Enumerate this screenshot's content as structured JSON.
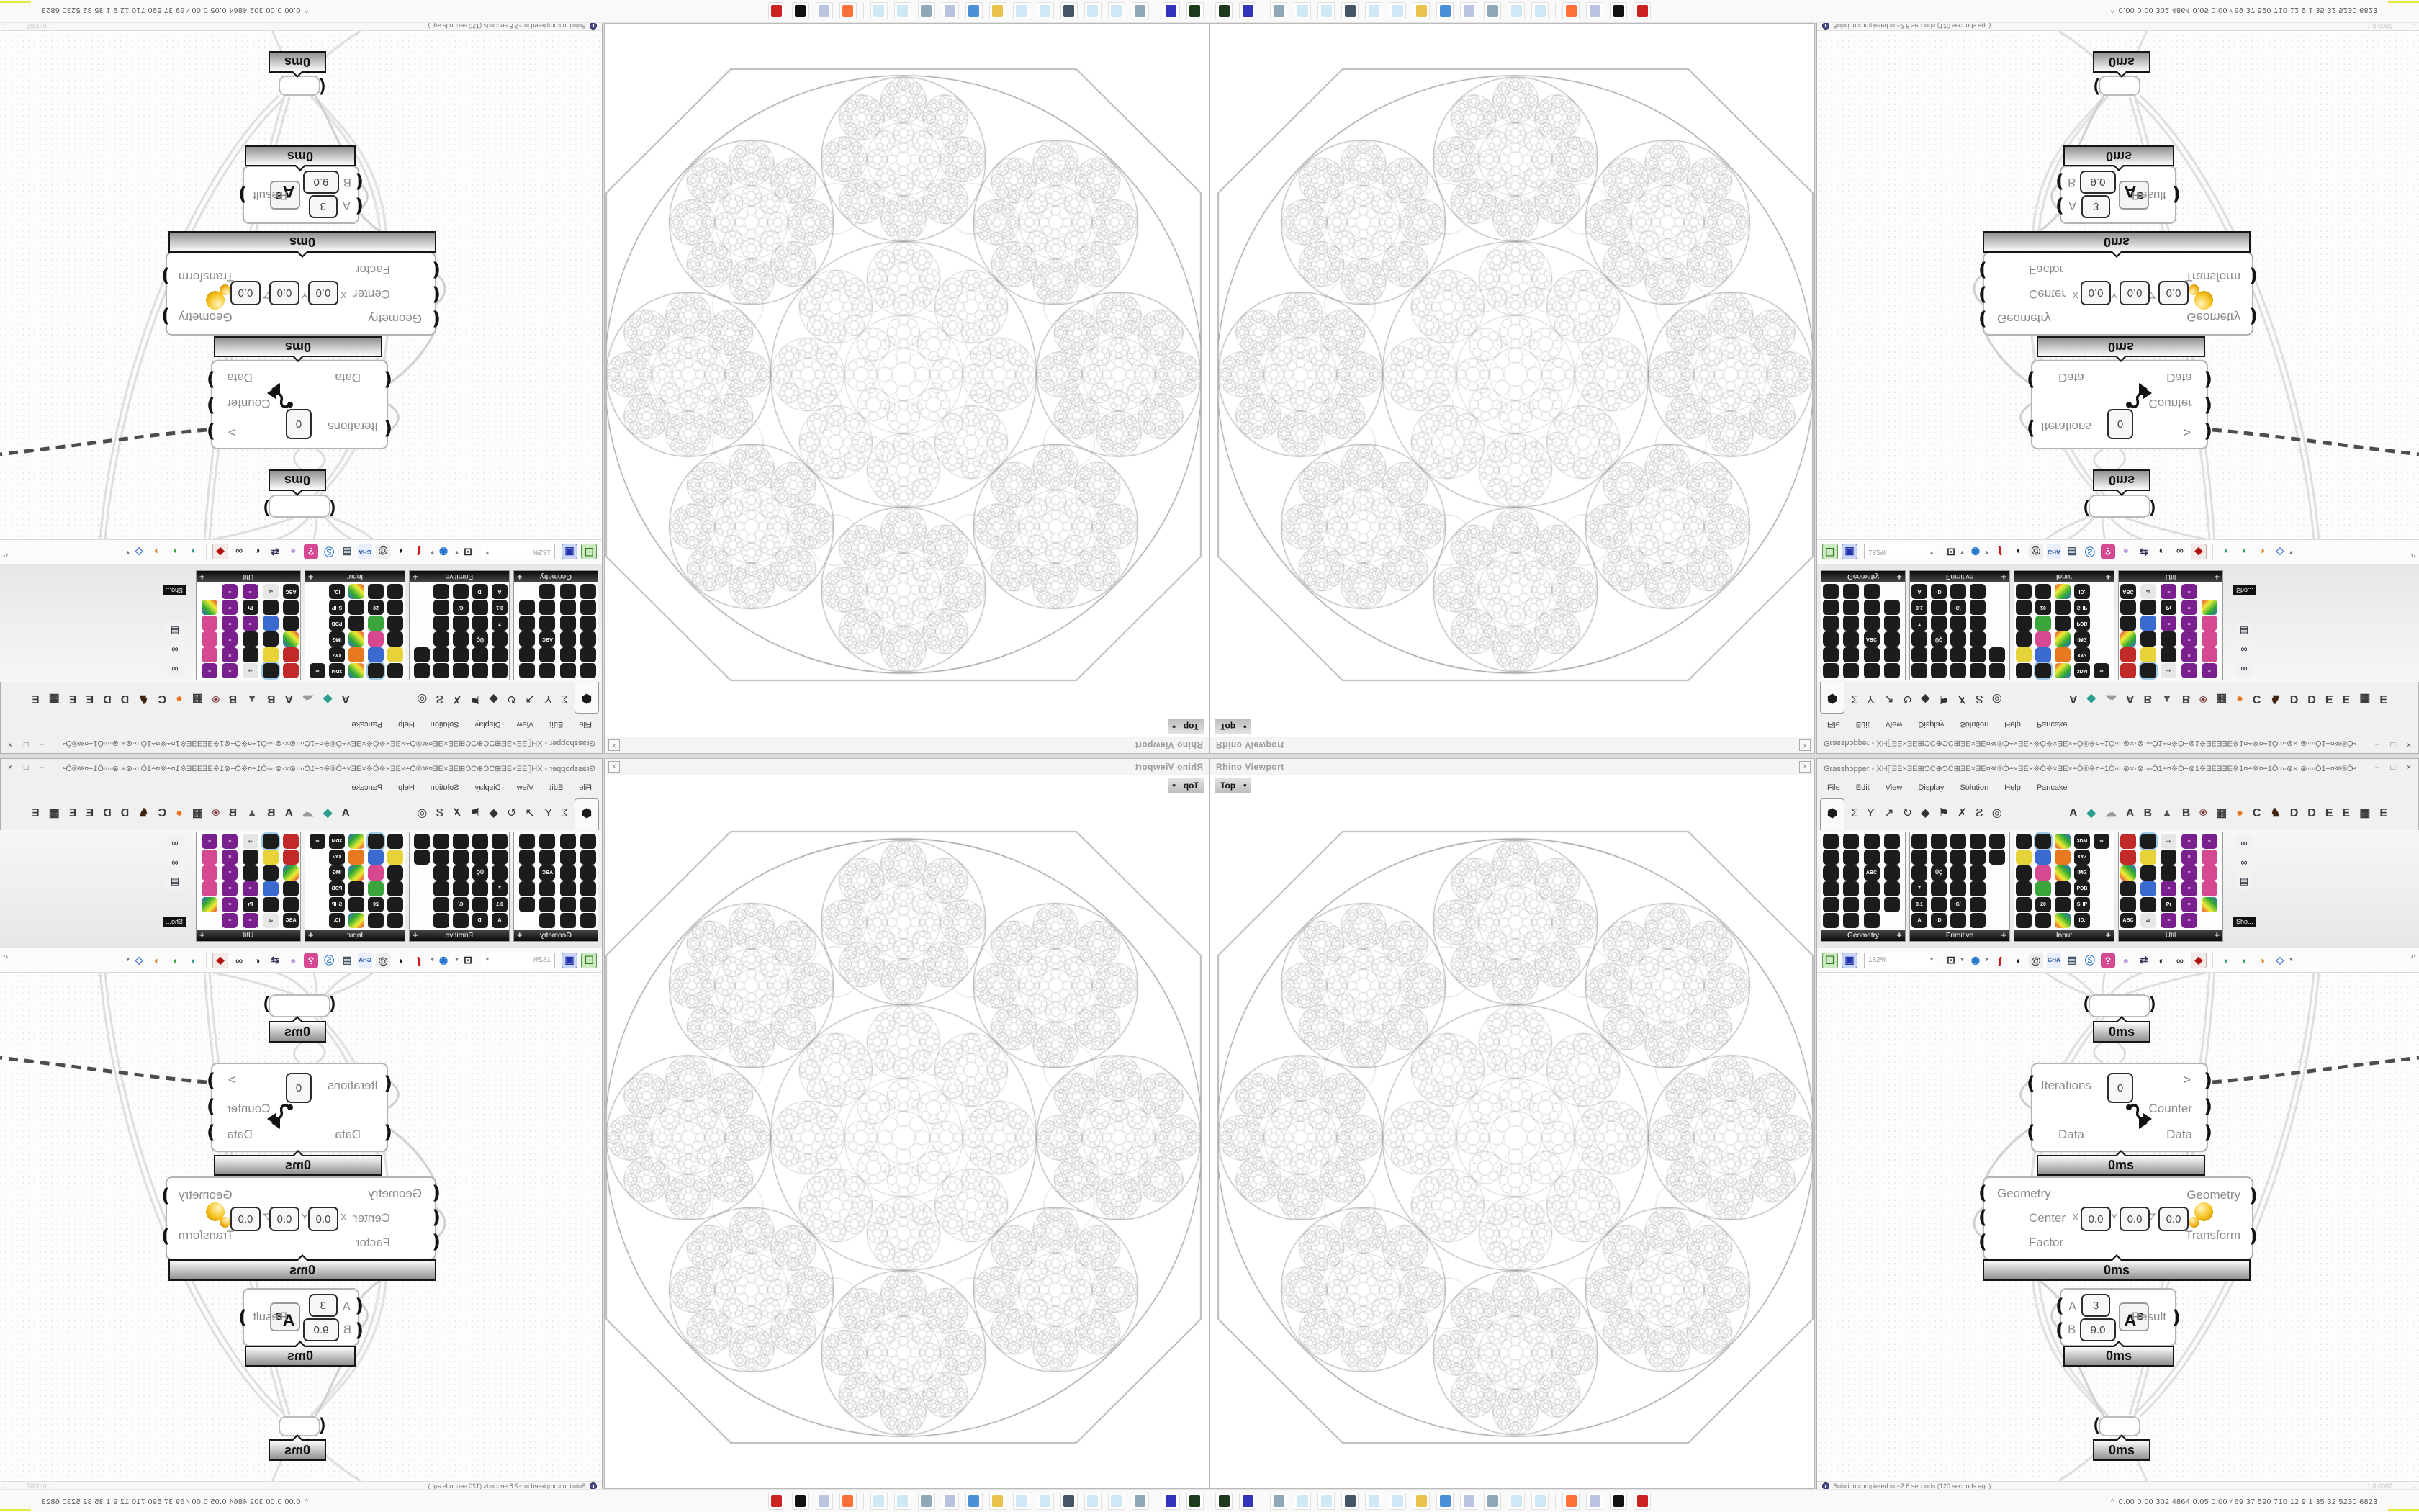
{
  "viewport": {
    "title": "Rhino Viewport",
    "close_label": "x",
    "view_button": {
      "label": "Top",
      "caret": "▾"
    }
  },
  "grasshopper": {
    "title": "Grasshopper - XH[]ƎE×ƎE⊞ƆC⊕ƆC⊞ƎE×ƎE¤※®Ò÷×ƎE×※Ò※×ƎE×÷Ò®※¤÷1Ò∞·⊗×·⊗·∞Ò1÷¤※Ò÷⊗1※ƎEƎƎE※1¤÷※¤÷1Ò∞·⊗×·⊗·∞Ò1÷¤※®Ò÷×ƎE×※Ò...",
    "window_buttons": {
      "minimize": "–",
      "maximize": "□",
      "close": "×"
    },
    "menu": [
      "File",
      "Edit",
      "View",
      "Display",
      "Solution",
      "Help",
      "Pancake"
    ],
    "tabs": {
      "selected_glyph": "⬢",
      "core": [
        {
          "name": "tab-maths",
          "glyph": "Σ"
        },
        {
          "name": "tab-sets",
          "glyph": "Ƴ"
        },
        {
          "name": "tab-vector",
          "glyph": "↗"
        },
        {
          "name": "tab-curve",
          "glyph": "↻"
        },
        {
          "name": "tab-surface",
          "glyph": "◆"
        },
        {
          "name": "tab-mesh",
          "glyph": "⚑"
        },
        {
          "name": "tab-intersect",
          "glyph": "✗"
        },
        {
          "name": "tab-transform",
          "glyph": "Ƨ"
        },
        {
          "name": "tab-display",
          "glyph": "◎"
        }
      ],
      "plugins": [
        {
          "glyph": "A",
          "color": "#3a3a3a"
        },
        {
          "glyph": "◆",
          "color": "#2a9d8f"
        },
        {
          "glyph": "☁",
          "color": "#9a9a9a"
        },
        {
          "glyph": "A",
          "color": "#3a3a3a"
        },
        {
          "glyph": "B",
          "color": "#3a3a3a"
        },
        {
          "glyph": "▲",
          "color": "#555555"
        },
        {
          "glyph": "B",
          "color": "#3a3a3a"
        },
        {
          "glyph": "⍟",
          "color": "#7a3333"
        },
        {
          "glyph": "▦",
          "color": "#3a3a3a"
        },
        {
          "glyph": "●",
          "color": "#e8791e"
        },
        {
          "glyph": "C",
          "color": "#3a3a3a"
        },
        {
          "glyph": "♞",
          "color": "#42210b"
        },
        {
          "glyph": "D",
          "color": "#3a3a3a"
        },
        {
          "glyph": "D",
          "color": "#3a3a3a"
        },
        {
          "glyph": "E",
          "color": "#3a3a3a"
        },
        {
          "glyph": "E",
          "color": "#3a3a3a"
        },
        {
          "glyph": "▩",
          "color": "#3a3a3a"
        },
        {
          "glyph": "E",
          "color": "#3a3a3a"
        }
      ]
    },
    "palettes": [
      {
        "title": "Geometry",
        "cols": 4,
        "cells": [
          "k",
          "k",
          "k",
          "k",
          "k",
          "k",
          "k",
          "k",
          "k",
          "k",
          "t:ABC",
          "k",
          "k",
          "k",
          "k",
          "k",
          "k",
          "k",
          "k",
          "k",
          "k",
          "k",
          "k",
          "_"
        ]
      },
      {
        "title": "Primitive",
        "cols": 5,
        "cells": [
          "k",
          "k",
          "k",
          "k",
          "k",
          "k",
          "k",
          "k",
          "k",
          "k",
          "k",
          "t:ÜÇ",
          "k",
          "k",
          "_",
          "t:7",
          "k",
          "k",
          "k",
          "_",
          "t:0.1",
          "k",
          "t:C/",
          "k",
          "_",
          "t:A",
          "t:ID",
          "k",
          "k",
          "_"
        ]
      },
      {
        "title": "Input",
        "cols": 5,
        "cells": [
          "k",
          "K",
          "c",
          "t:3DM",
          "t:∞",
          "y",
          "b",
          "o",
          "t:XYZ",
          "_",
          "k",
          "m",
          "c",
          "t:IMG",
          "_",
          "k",
          "g",
          "k",
          "t:PDB",
          "_",
          "k",
          "t:20",
          "k",
          "t:SHP",
          "_",
          "k",
          "k",
          "c",
          "t:ID.",
          "_"
        ]
      },
      {
        "title": "Util",
        "cols": 5,
        "cells": [
          "r",
          "K",
          "w",
          "p",
          "p",
          "r",
          "y",
          "k",
          "p",
          "m",
          "c",
          "k",
          "k",
          "p",
          "m",
          "k",
          "b",
          "p",
          "p",
          "m",
          "k",
          "k",
          "t:Pr",
          "p",
          "c",
          "t:ABC",
          "w",
          "p",
          "p",
          "_"
        ]
      }
    ],
    "mini_palette": {
      "tooltip": "Sho...",
      "cells": [
        {
          "name": "remote-definition-icon",
          "glyph": "∞"
        },
        {
          "name": "remote-definition-off-icon",
          "glyph": "∞"
        },
        {
          "name": "show-canvas-icon",
          "glyph": "▤"
        }
      ]
    },
    "toolbar": {
      "zoom_value": "182%",
      "icons": [
        {
          "name": "open-file-icon",
          "glyph": "❏",
          "color": "#2f9e2f",
          "bg": "#d8f0d0"
        },
        {
          "name": "save-file-icon",
          "glyph": "▣",
          "color": "#2244bb",
          "bg": "#d4defa"
        },
        {
          "name": "zoom-extents-icon",
          "glyph": "⊡",
          "color": "#222222",
          "bg": "",
          "caret": true
        },
        {
          "name": "preview-eye-icon",
          "glyph": "◉",
          "color": "#2277cc",
          "bg": "",
          "caret": true
        },
        {
          "name": "sketch-pen-icon",
          "glyph": "ʃ",
          "color": "#cc1111",
          "bg": ""
        },
        {
          "name": "speaker-icon",
          "glyph": "◖",
          "color": "#222222",
          "bg": ""
        },
        {
          "name": "email-at-icon",
          "glyph": "@",
          "color": "#333333",
          "bg": "#eeeeee"
        },
        {
          "name": "gha-assembly-icon",
          "glyph": "GHA",
          "color": "#1a4fa0",
          "bg": "#e8eefc"
        },
        {
          "name": "window-link-icon",
          "glyph": "▤",
          "color": "#445566",
          "bg": ""
        },
        {
          "name": "find-component-icon",
          "glyph": "Ⓢ",
          "color": "#2277cc",
          "bg": ""
        },
        {
          "name": "help-bag-icon",
          "glyph": "?",
          "color": "#ffffff",
          "bg": "#d6488f"
        },
        {
          "name": "balloon-icon",
          "glyph": "●",
          "color": "#b9a0e8",
          "bg": ""
        },
        {
          "name": "galapagos-icon",
          "glyph": "⇄",
          "color": "#333355",
          "bg": ""
        },
        {
          "name": "camera-sphere-icon",
          "glyph": "◐",
          "color": "#222222",
          "bg": ""
        },
        {
          "name": "rings-icon",
          "glyph": "∞",
          "color": "#444444",
          "bg": ""
        },
        {
          "name": "gem-icon",
          "glyph": "◆",
          "color": "#b01010",
          "bg": "#f5eaea"
        },
        {
          "name": "separator",
          "glyph": "|",
          "color": "",
          "bg": ""
        },
        {
          "name": "preview-wire-icon",
          "glyph": "◗",
          "color": "#2a9d8f",
          "bg": ""
        },
        {
          "name": "preview-shaded-icon",
          "glyph": "◗",
          "color": "#3aa53a",
          "bg": ""
        },
        {
          "name": "preview-rendered-icon",
          "glyph": "◑",
          "color": "#e07a1f",
          "bg": ""
        },
        {
          "name": "preview-custom-icon",
          "glyph": "◇",
          "color": "#4a7fd0",
          "bg": "",
          "caret": true
        }
      ],
      "scroll_arrows": "▴▾"
    },
    "canvas": {
      "profiler_label": "0ms",
      "loop_start": {
        "inputs": [
          {
            "label": "Iterations",
            "value": "0"
          },
          {
            "label": "Data",
            "value": ""
          }
        ],
        "outputs": [
          ">",
          "Counter",
          "Data"
        ]
      },
      "scale": {
        "input_labels": [
          "Geometry",
          "Center",
          "Factor"
        ],
        "axis_labels": [
          "X",
          "Y",
          "Z"
        ],
        "center_values": [
          "0.0",
          "0.0",
          "0.0"
        ],
        "output_labels": [
          "Geometry",
          "Transform"
        ]
      },
      "power": {
        "a_label": "A",
        "a_value": "3",
        "b_label": "B",
        "b_value": "9.0",
        "icon_main": "A",
        "icon_sup": "B",
        "output_label": "Result"
      }
    },
    "status": {
      "message": "Solution completed in ~2.8 seconds (120 seconds ago)",
      "version": "1,0,0007",
      "grip": "∷"
    }
  },
  "taskbar": {
    "apps": [
      {
        "name": "hard-drive-app-icon",
        "color": "#1d3a1d"
      },
      {
        "name": "floppy-64-icon",
        "color": "#3333bb"
      },
      {
        "name": "print-utility-icon",
        "color": "#8fa8b8"
      },
      {
        "name": "notepad-icon",
        "color": "#cfe8f5"
      },
      {
        "name": "notepad-icon",
        "color": "#cfe8f5"
      },
      {
        "name": "display-settings-icon",
        "color": "#445566"
      },
      {
        "name": "notepad-icon",
        "color": "#cfe8f5"
      },
      {
        "name": "notepad-icon",
        "color": "#cfe8f5"
      },
      {
        "name": "folder-icon",
        "color": "#e8c24a"
      },
      {
        "name": "control-panel-icon",
        "color": "#4a90d9"
      },
      {
        "name": "calculator-icon",
        "color": "#b8c4e0"
      },
      {
        "name": "print-utility-icon",
        "color": "#8fa8b8"
      },
      {
        "name": "notepad-icon",
        "color": "#cfe8f5"
      },
      {
        "name": "notepad-icon",
        "color": "#cfe8f5"
      },
      {
        "name": "firefox-icon",
        "color": "#ff7139"
      },
      {
        "name": "calculator-icon",
        "color": "#b8c4e0"
      },
      {
        "name": "inkscape-icon",
        "color": "#111111"
      },
      {
        "name": "system-monitor-icon",
        "color": "#cc2222"
      }
    ],
    "tray": {
      "expand_arrow": "^",
      "stats": "0.00 0.00 302 4864 0.05 0.00 469  37  590  710  12  9.1  35  32 5230 6823",
      "histogram": [
        {
          "color": "#e8e840",
          "w": 44,
          "h": 3
        },
        {
          "color": "#8b4513",
          "w": 16,
          "h": 11
        },
        {
          "color": "#1f4e96",
          "w": 18,
          "h": 15
        },
        {
          "color": "#8b4513",
          "w": 14,
          "h": 10
        },
        {
          "color": "#3aa53a",
          "w": 20,
          "h": 2
        },
        {
          "color": "#cc2222",
          "w": 4,
          "h": 6
        }
      ]
    }
  }
}
